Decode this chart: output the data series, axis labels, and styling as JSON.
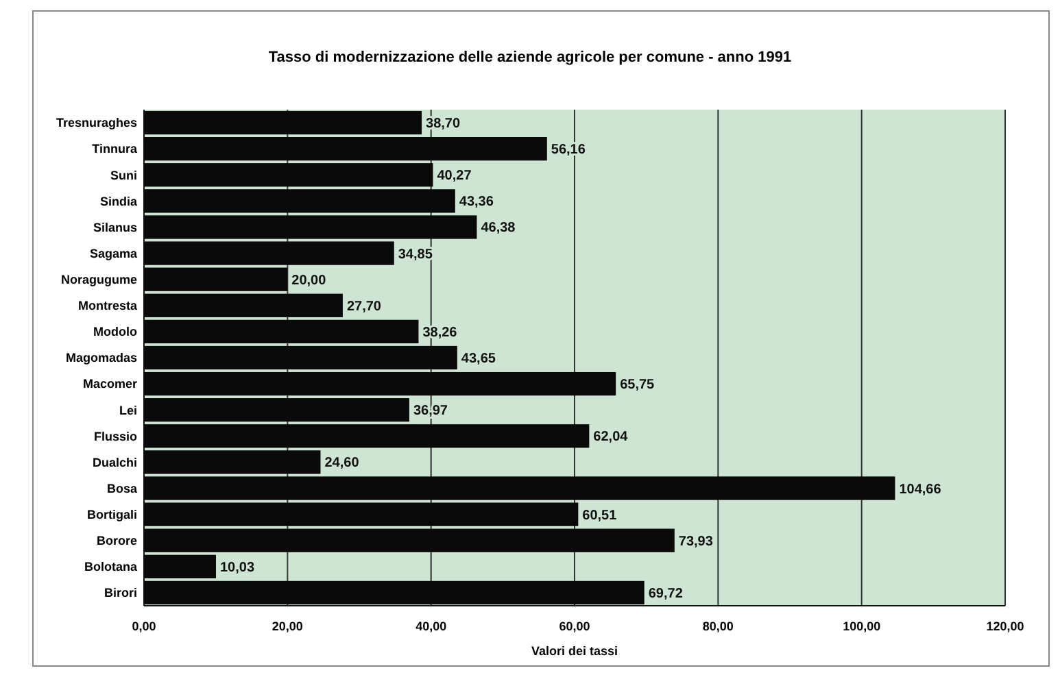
{
  "chart_data": {
    "type": "bar",
    "orientation": "horizontal",
    "title": "Tasso di modernizzazione delle aziende agricole per comune - anno 1991",
    "xlabel": "Valori dei tassi",
    "categories": [
      "Tresnuraghes",
      "Tinnura",
      "Suni",
      "Sindia",
      "Silanus",
      "Sagama",
      "Noragugume",
      "Montresta",
      "Modolo",
      "Magomadas",
      "Macomer",
      "Lei",
      "Flussio",
      "Dualchi",
      "Bosa",
      "Bortigali",
      "Borore",
      "Bolotana",
      "Birori"
    ],
    "values": [
      38.7,
      56.16,
      40.27,
      43.36,
      46.38,
      34.85,
      20.0,
      27.7,
      38.26,
      43.65,
      65.75,
      36.97,
      62.04,
      24.6,
      104.66,
      60.51,
      73.93,
      10.03,
      69.72
    ],
    "value_labels": [
      "38,70",
      "56,16",
      "40,27",
      "43,36",
      "46,38",
      "34,85",
      "20,00",
      "27,70",
      "38,26",
      "43,65",
      "65,75",
      "36,97",
      "62,04",
      "24,60",
      "104,66",
      "60,51",
      "73,93",
      "10,03",
      "69,72"
    ],
    "color": "#0a0a0a",
    "xlim": [
      0,
      120
    ],
    "xticks": [
      {
        "value": 0,
        "label": "0,00"
      },
      {
        "value": 20,
        "label": "20,00"
      },
      {
        "value": 40,
        "label": "40,00"
      },
      {
        "value": 60,
        "label": "60,00"
      },
      {
        "value": 80,
        "label": "80,00"
      },
      {
        "value": 100,
        "label": "100,00"
      },
      {
        "value": 120,
        "label": "120,00"
      }
    ],
    "grid": "x"
  }
}
